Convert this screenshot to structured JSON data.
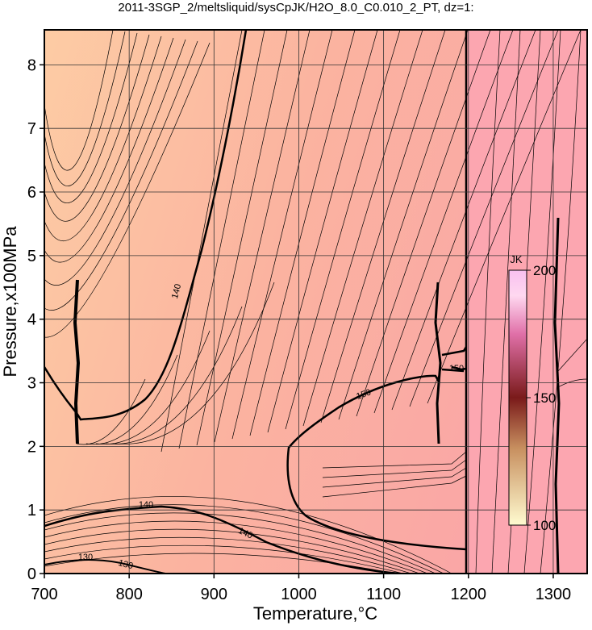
{
  "chart_data": {
    "type": "contour",
    "title": "2011-3SGP_2/meltsliquid/sysCpJK/H2O_8.0_C0.010_2_PT, dz=1:",
    "x_label": "Temperature,°C",
    "y_label": "Pressure,x100MPa",
    "xlim": [
      700,
      1340
    ],
    "ylim": [
      0,
      8.55
    ],
    "xticks": [
      700,
      800,
      900,
      1000,
      1100,
      1200,
      1300
    ],
    "yticks": [
      0,
      1,
      2,
      3,
      4,
      5,
      6,
      7,
      8
    ],
    "grid": true,
    "colorbar": {
      "label": "JK",
      "lim": [
        100,
        200
      ],
      "ticks": [
        100,
        150,
        200
      ]
    },
    "contour_labels": [
      140,
      150,
      150,
      140,
      140,
      130,
      130
    ]
  }
}
